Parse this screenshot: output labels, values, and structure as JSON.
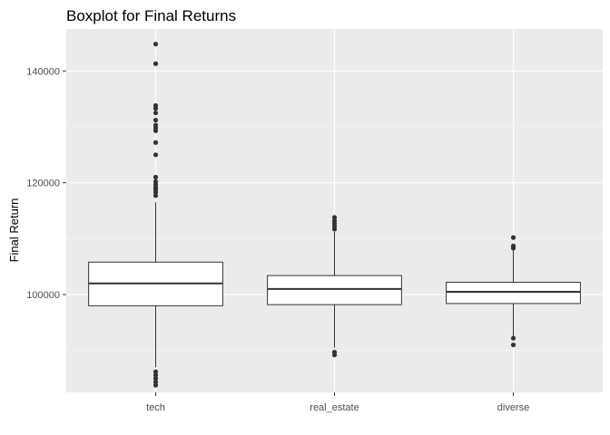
{
  "chart_data": {
    "type": "boxplot",
    "title": "Boxplot for Final Returns",
    "xlabel": "",
    "ylabel": "Final Return",
    "categories": [
      "tech",
      "real_estate",
      "diverse"
    ],
    "ylim": [
      82500,
      147500
    ],
    "yticks": [
      100000,
      120000,
      140000
    ],
    "ytick_labels": [
      "100000",
      "120000",
      "140000"
    ],
    "grid": true,
    "legend": "none",
    "boxes": [
      {
        "category": "tech",
        "lower_whisker": 87000,
        "q1": 98000,
        "median": 102000,
        "q3": 105800,
        "upper_whisker": 116500,
        "outliers": [
          144800,
          141300,
          133800,
          133300,
          132500,
          131200,
          130300,
          129800,
          129300,
          127200,
          125000,
          121000,
          120200,
          119700,
          119200,
          118800,
          118300,
          117700,
          86200,
          85600,
          85000,
          84400,
          83800
        ]
      },
      {
        "category": "real_estate",
        "lower_whisker": 90500,
        "q1": 98200,
        "median": 101000,
        "q3": 103400,
        "upper_whisker": 111200,
        "outliers": [
          113800,
          113200,
          112700,
          112200,
          111700,
          89700,
          89200
        ]
      },
      {
        "category": "diverse",
        "lower_whisker": 92500,
        "q1": 98400,
        "median": 100500,
        "q3": 102200,
        "upper_whisker": 108000,
        "outliers": [
          110200,
          108700,
          108300,
          92200,
          91000
        ]
      }
    ],
    "colors": {
      "panel": "#ebebeb",
      "grid_major": "#ffffff",
      "grid_minor": "#f5f5f5",
      "box_fill": "#ffffff",
      "box_line": "#333333",
      "outlier": "#333333",
      "tick": "#333333"
    }
  }
}
